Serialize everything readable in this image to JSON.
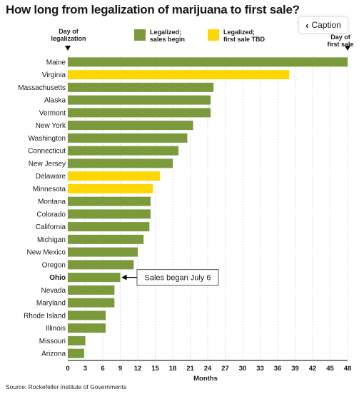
{
  "title": "How long from legalization of marijuana to first sale?",
  "caption_button": {
    "label": "Caption",
    "icon": "chevron-left-icon"
  },
  "legend": {
    "left_note": [
      "Day of",
      "legalization"
    ],
    "right_note": [
      "Day of",
      "first sale"
    ],
    "items": [
      {
        "label_lines": [
          "Legalized;",
          "sales begin"
        ],
        "color": "#7a9a3c"
      },
      {
        "label_lines": [
          "Legalized;",
          "first sale TBD"
        ],
        "color": "#ffd700"
      }
    ]
  },
  "colors": {
    "green": "#7a9a3c",
    "yellow": "#ffd700",
    "grid": "#cfcfcf"
  },
  "source": "Source: Rockefeller Institute of Governments",
  "chart_data": {
    "type": "bar",
    "orientation": "horizontal",
    "xlabel": "Months",
    "xlim": [
      0,
      48
    ],
    "xticks": [
      0,
      3,
      6,
      9,
      12,
      15,
      18,
      21,
      24,
      27,
      30,
      33,
      36,
      39,
      42,
      45,
      48
    ],
    "grid": true,
    "categories": [
      "Maine",
      "Virginia",
      "Massachusetts",
      "Alaska",
      "Vermont",
      "New York",
      "Washington",
      "Connecticut",
      "New Jersey",
      "Delaware",
      "Minnesota",
      "Montana",
      "Colorado",
      "California",
      "Michigan",
      "New Mexico",
      "Oregon",
      "Ohio",
      "Nevada",
      "Maryland",
      "Rhode Island",
      "Illinois",
      "Missouri",
      "Arizona"
    ],
    "values": [
      48,
      38,
      25,
      24.5,
      24.5,
      21.5,
      20.5,
      19,
      18,
      15.8,
      14.6,
      14.2,
      14.2,
      14,
      13,
      12,
      11.3,
      9,
      8,
      8,
      6.5,
      6.5,
      3,
      2.8
    ],
    "status": [
      "sales",
      "tbd",
      "sales",
      "sales",
      "sales",
      "sales",
      "sales",
      "sales",
      "sales",
      "tbd",
      "tbd",
      "sales",
      "sales",
      "sales",
      "sales",
      "sales",
      "sales",
      "sales",
      "sales",
      "sales",
      "sales",
      "sales",
      "sales",
      "sales"
    ],
    "annotation": {
      "category": "Ohio",
      "text": "Sales began July 6"
    }
  }
}
